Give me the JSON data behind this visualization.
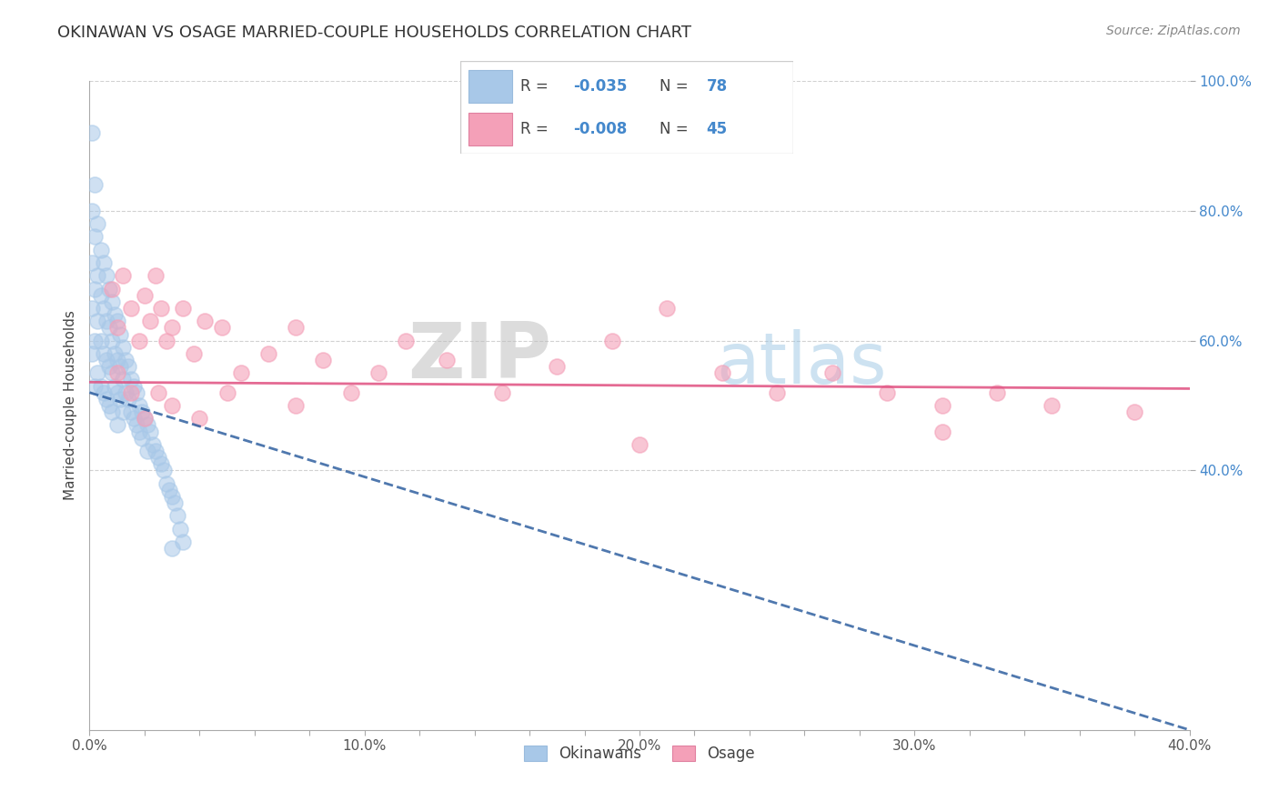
{
  "title": "OKINAWAN VS OSAGE MARRIED-COUPLE HOUSEHOLDS CORRELATION CHART",
  "source": "Source: ZipAtlas.com",
  "ylabel": "Married-couple Households",
  "xlim": [
    0.0,
    0.4
  ],
  "ylim": [
    0.0,
    1.0
  ],
  "xtick_labels": [
    "0.0%",
    "",
    "",
    "",
    "",
    "10.0%",
    "",
    "",
    "",
    "",
    "20.0%",
    "",
    "",
    "",
    "",
    "30.0%",
    "",
    "",
    "",
    "",
    "40.0%"
  ],
  "xtick_vals": [
    0.0,
    0.02,
    0.04,
    0.06,
    0.08,
    0.1,
    0.12,
    0.14,
    0.16,
    0.18,
    0.2,
    0.22,
    0.24,
    0.26,
    0.28,
    0.3,
    0.32,
    0.34,
    0.36,
    0.38,
    0.4
  ],
  "ytick_labels": [
    "100.0%",
    "80.0%",
    "60.0%",
    "40.0%"
  ],
  "ytick_vals": [
    1.0,
    0.8,
    0.6,
    0.4
  ],
  "legend_labels": [
    "Okinawans",
    "Osage"
  ],
  "okinawan_R": "-0.035",
  "okinawan_N": "78",
  "osage_R": "-0.008",
  "osage_N": "45",
  "blue_color": "#a8c8e8",
  "pink_color": "#f4a0b8",
  "blue_line_color": "#3060a0",
  "pink_line_color": "#e05080",
  "watermark_zip": "ZIP",
  "watermark_atlas": "atlas",
  "okinawan_x": [
    0.001,
    0.001,
    0.001,
    0.001,
    0.001,
    0.002,
    0.002,
    0.002,
    0.002,
    0.002,
    0.003,
    0.003,
    0.003,
    0.003,
    0.004,
    0.004,
    0.004,
    0.004,
    0.005,
    0.005,
    0.005,
    0.005,
    0.006,
    0.006,
    0.006,
    0.006,
    0.007,
    0.007,
    0.007,
    0.007,
    0.008,
    0.008,
    0.008,
    0.008,
    0.009,
    0.009,
    0.009,
    0.01,
    0.01,
    0.01,
    0.01,
    0.011,
    0.011,
    0.011,
    0.012,
    0.012,
    0.012,
    0.013,
    0.013,
    0.014,
    0.014,
    0.015,
    0.015,
    0.016,
    0.016,
    0.017,
    0.017,
    0.018,
    0.018,
    0.019,
    0.019,
    0.02,
    0.021,
    0.021,
    0.022,
    0.023,
    0.024,
    0.025,
    0.026,
    0.027,
    0.028,
    0.029,
    0.03,
    0.03,
    0.031,
    0.032,
    0.033,
    0.034
  ],
  "okinawan_y": [
    0.92,
    0.8,
    0.72,
    0.65,
    0.58,
    0.84,
    0.76,
    0.68,
    0.6,
    0.53,
    0.78,
    0.7,
    0.63,
    0.55,
    0.74,
    0.67,
    0.6,
    0.53,
    0.72,
    0.65,
    0.58,
    0.52,
    0.7,
    0.63,
    0.57,
    0.51,
    0.68,
    0.62,
    0.56,
    0.5,
    0.66,
    0.6,
    0.55,
    0.49,
    0.64,
    0.58,
    0.53,
    0.63,
    0.57,
    0.52,
    0.47,
    0.61,
    0.56,
    0.51,
    0.59,
    0.54,
    0.49,
    0.57,
    0.52,
    0.56,
    0.51,
    0.54,
    0.49,
    0.53,
    0.48,
    0.52,
    0.47,
    0.5,
    0.46,
    0.49,
    0.45,
    0.48,
    0.47,
    0.43,
    0.46,
    0.44,
    0.43,
    0.42,
    0.41,
    0.4,
    0.38,
    0.37,
    0.36,
    0.28,
    0.35,
    0.33,
    0.31,
    0.29
  ],
  "osage_x": [
    0.008,
    0.01,
    0.012,
    0.015,
    0.018,
    0.02,
    0.022,
    0.024,
    0.026,
    0.028,
    0.03,
    0.034,
    0.038,
    0.042,
    0.048,
    0.055,
    0.065,
    0.075,
    0.085,
    0.095,
    0.105,
    0.115,
    0.13,
    0.15,
    0.17,
    0.19,
    0.21,
    0.23,
    0.25,
    0.27,
    0.29,
    0.31,
    0.33,
    0.35,
    0.38,
    0.01,
    0.015,
    0.02,
    0.025,
    0.03,
    0.04,
    0.05,
    0.075,
    0.2,
    0.31
  ],
  "osage_y": [
    0.68,
    0.62,
    0.7,
    0.65,
    0.6,
    0.67,
    0.63,
    0.7,
    0.65,
    0.6,
    0.62,
    0.65,
    0.58,
    0.63,
    0.62,
    0.55,
    0.58,
    0.62,
    0.57,
    0.52,
    0.55,
    0.6,
    0.57,
    0.52,
    0.56,
    0.6,
    0.65,
    0.55,
    0.52,
    0.55,
    0.52,
    0.5,
    0.52,
    0.5,
    0.49,
    0.55,
    0.52,
    0.48,
    0.52,
    0.5,
    0.48,
    0.52,
    0.5,
    0.44,
    0.46
  ]
}
